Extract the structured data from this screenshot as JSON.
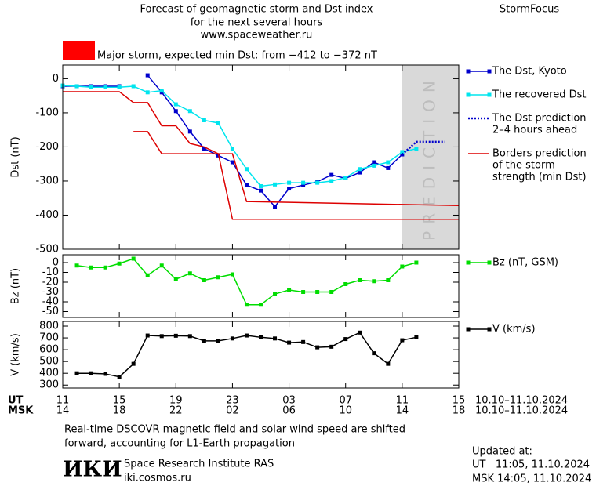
{
  "header": {
    "title_lines": [
      "Forecast of geomagnetic storm and Dst index",
      "for the next several hours",
      "www.spaceweather.ru"
    ],
    "brand": "StormFocus"
  },
  "chart_data": [
    {
      "type": "line",
      "ylabel": "Dst (nT)",
      "xlim": [
        0,
        28
      ],
      "ylim": [
        -500,
        40
      ],
      "yticks": [
        0,
        -100,
        -200,
        -300,
        -400,
        -500
      ],
      "annotation": "Major storm, expected min Dst: from −412 to −372 nT",
      "annotation_color": "#ff0000",
      "prediction_region": {
        "xlim": [
          24,
          28
        ],
        "label": "PREDICTION"
      },
      "series": [
        {
          "name": [
            "The Dst, Kyoto"
          ],
          "color": "#0000cc",
          "marker": "square",
          "x": [
            0,
            1,
            2,
            3,
            4,
            5,
            6,
            7,
            8,
            9,
            10,
            11,
            12,
            13,
            14,
            15,
            16,
            17,
            18,
            19,
            20,
            21,
            22,
            23,
            24
          ],
          "values": [
            -22,
            -22,
            -22,
            -22,
            -22,
            null,
            10,
            -40,
            -95,
            -155,
            -205,
            -225,
            -245,
            -312,
            -328,
            -375,
            -322,
            -312,
            -302,
            -282,
            -292,
            -275,
            -245,
            -262,
            -222
          ]
        },
        {
          "name": [
            "The recovered Dst"
          ],
          "color": "#00e5ee",
          "marker": "square",
          "x": [
            0,
            1,
            2,
            3,
            4,
            5,
            6,
            7,
            8,
            9,
            10,
            11,
            12,
            13,
            14,
            15,
            16,
            17,
            18,
            19,
            20,
            21,
            22,
            23,
            24,
            25
          ],
          "values": [
            -20,
            -22,
            -25,
            -25,
            -25,
            -22,
            -40,
            -35,
            -75,
            -95,
            -122,
            -130,
            -205,
            -265,
            -315,
            -310,
            -305,
            -305,
            -305,
            -300,
            -290,
            -265,
            -255,
            -245,
            -215,
            -205
          ]
        },
        {
          "name": [
            "The Dst prediction",
            "2–4 hours ahead"
          ],
          "color": "#0000cc",
          "dash": true,
          "x": [
            24,
            25,
            27
          ],
          "values": [
            -222,
            -185,
            -185
          ]
        },
        {
          "name": [
            "Borders prediction",
            "of the storm",
            "strength (min Dst)"
          ],
          "color": "#dd0000",
          "lines": [
            {
              "x": [
                0,
                4,
                5,
                6,
                7,
                8,
                9,
                10,
                11,
                12,
                13,
                28
              ],
              "values": [
                -38,
                -38,
                -70,
                -70,
                -138,
                -138,
                -190,
                -200,
                -220,
                -220,
                -360,
                -372
              ]
            },
            {
              "x": [
                5,
                6,
                7,
                11,
                12,
                28
              ],
              "values": [
                -155,
                -155,
                -220,
                -220,
                -412,
                -412
              ]
            }
          ]
        }
      ]
    },
    {
      "type": "line",
      "ylabel": "Bz (nT)",
      "xlim": [
        0,
        28
      ],
      "ylim": [
        -56,
        8
      ],
      "yticks": [
        0,
        -10,
        -20,
        -30,
        -40,
        -50
      ],
      "series": [
        {
          "name": [
            "Bz (nT, GSM)"
          ],
          "color": "#00dd00",
          "marker": "square",
          "x": [
            1,
            2,
            3,
            4,
            5,
            6,
            7,
            8,
            9,
            10,
            11,
            12,
            13,
            14,
            15,
            16,
            17,
            18,
            19,
            20,
            21,
            22,
            23,
            24,
            25
          ],
          "values": [
            -3,
            -5,
            -5,
            -1,
            4,
            -13,
            -3,
            -17,
            -11,
            -18,
            -15,
            -12,
            -43,
            -43,
            -32,
            -28,
            -30,
            -30,
            -30,
            -22,
            -18,
            -19,
            -18,
            -4,
            0
          ]
        }
      ]
    },
    {
      "type": "line",
      "ylabel": "V (km/s)",
      "xlim": [
        0,
        28
      ],
      "ylim": [
        275,
        840
      ],
      "yticks": [
        800,
        700,
        600,
        500,
        400,
        300
      ],
      "xticks": [
        {
          "value": 0,
          "label": "11"
        },
        {
          "value": 4,
          "label": "15"
        },
        {
          "value": 8,
          "label": "19"
        },
        {
          "value": 12,
          "label": "23"
        },
        {
          "value": 16,
          "label": "03"
        },
        {
          "value": 20,
          "label": "07"
        },
        {
          "value": 24,
          "label": "11"
        },
        {
          "value": 28,
          "label": "15"
        }
      ],
      "xticks_msk": [
        "14",
        "18",
        "22",
        "02",
        "06",
        "10",
        "14",
        "18"
      ],
      "x_row_labels": [
        "UT",
        "MSK"
      ],
      "date_labels": [
        "10.10–11.10.2024",
        "10.10–11.10.2024"
      ],
      "series": [
        {
          "name": [
            "V (km/s)"
          ],
          "color": "#000000",
          "marker": "square",
          "x": [
            1,
            2,
            3,
            4,
            5,
            6,
            7,
            8,
            9,
            10,
            11,
            12,
            13,
            14,
            15,
            16,
            17,
            18,
            19,
            20,
            21,
            22,
            23,
            24,
            25
          ],
          "values": [
            400,
            400,
            395,
            370,
            480,
            720,
            715,
            718,
            715,
            675,
            675,
            695,
            720,
            705,
            695,
            660,
            665,
            620,
            625,
            690,
            745,
            570,
            480,
            680,
            705
          ]
        }
      ]
    }
  ],
  "footer": {
    "note_lines": [
      "Real-time DSCOVR magnetic field and solar wind speed are shifted",
      "forward, accounting for L1-Earth propagation"
    ],
    "logo": "ИКИ",
    "institute": "Space Research Institute RAS",
    "site": "iki.cosmos.ru",
    "updated_label": "Updated at:",
    "updated_lines": [
      "UT   11:05, 11.10.2024",
      "MSK 14:05, 11.10.2024"
    ]
  }
}
